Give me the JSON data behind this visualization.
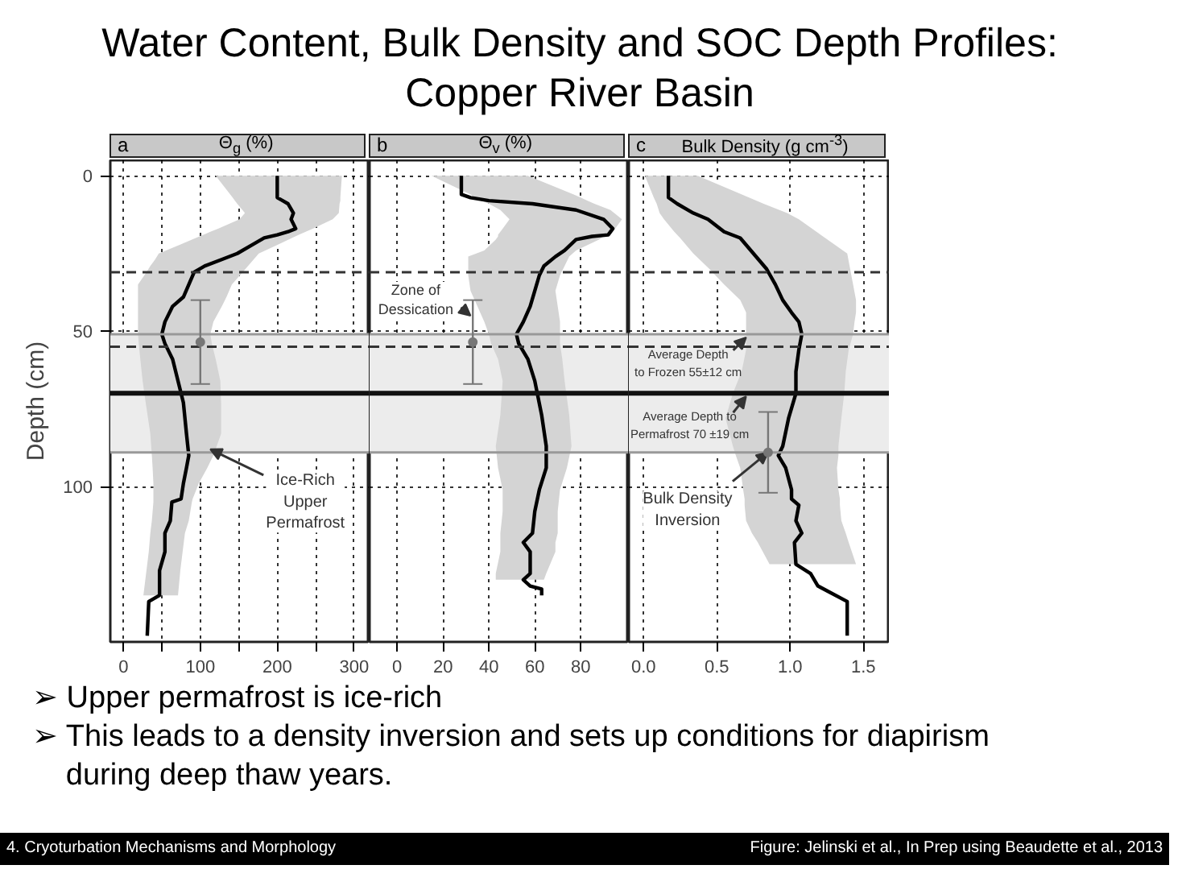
{
  "chart_data": [
    {
      "type": "other",
      "title": "Water Content, Bulk Density and SOC Depth Profiles:\nCopper River Basin",
      "annotations": [
        "➢ Upper permafrost is ice-rich",
        "➢ This leads to a density inversion and sets up conditions for diapirism during deep thaw years.",
        "4. Cryoturbation Mechanisms and Morphology",
        "Figure: Jelinski et al., In Prep using Beaudette et al., 2013"
      ]
    },
    {
      "type": "line",
      "orientation": "horizontal",
      "title": "a",
      "xlabel": "Θ$_{g}$ (%)",
      "ylabel": "Depth (cm)",
      "xlim": [
        -17,
        320
      ],
      "ylim": [
        150,
        -5
      ],
      "xticks": [
        0,
        {
          "value": 50,
          "label": null
        },
        100,
        {
          "value": 150,
          "label": null
        },
        200,
        {
          "value": 250,
          "label": null
        },
        300
      ],
      "yticks": [
        0,
        50,
        100
      ],
      "grid": true,
      "series": [
        {
          "color": "#000000",
          "x": [
            0,
            7,
            8,
            9,
            12,
            14,
            17,
            18,
            19,
            20,
            22,
            25,
            27,
            29,
            31,
            35,
            39,
            42,
            47,
            51,
            54,
            59,
            66,
            73,
            83,
            90,
            94,
            99,
            104,
            105,
            111,
            115,
            121,
            127,
            135,
            137,
            148
          ],
          "values": [
            200,
            200,
            207,
            214,
            221,
            218,
            224,
            214,
            200,
            183,
            169,
            148,
            127,
            106,
            92,
            85,
            78,
            64,
            54,
            50,
            54,
            64,
            71,
            78,
            82,
            85,
            82,
            78,
            75,
            63,
            61,
            54,
            54,
            47,
            47,
            33,
            31
          ],
          "lower": [
            120,
            142,
            145,
            148,
            158,
            151,
            123,
            113,
            104,
            94,
            75,
            46,
            41,
            35,
            30,
            19,
            19,
            19,
            19,
            19,
            20,
            22,
            25,
            29,
            35,
            37,
            38,
            39,
            39,
            39,
            37,
            35,
            33,
            30,
            26,
            null,
            null
          ],
          "upper": [
            284,
            282,
            282,
            281,
            280,
            272,
            246,
            237,
            228,
            219,
            202,
            176,
            169,
            162,
            155,
            141,
            134,
            128,
            117,
            113,
            115,
            120,
            126,
            127,
            127,
            117,
            109,
            98,
            90,
            89,
            85,
            80,
            77,
            74,
            71,
            null,
            null
          ]
        },
        {
          "type": "scatter",
          "marker": "circle",
          "color": "#777777",
          "x": [
            53.5
          ],
          "values": [
            100
          ],
          "xerrors": [
            [
              40,
              67
            ]
          ]
        }
      ],
      "ref_lines": [
        {
          "axis": "y",
          "value": 31,
          "line_style": "dashed",
          "color": "#333333"
        },
        {
          "axis": "y",
          "value": 51,
          "line_style": "solid",
          "color": "#999999"
        },
        {
          "axis": "y",
          "value": 55,
          "line_style": "dashed",
          "color": "#333333"
        },
        {
          "axis": "y",
          "value": 70,
          "line_style": "solid",
          "color": "#111111"
        },
        {
          "axis": "y",
          "value": 89,
          "line_style": "solid",
          "color": "#999999"
        }
      ],
      "bands": [
        {
          "axis": "y",
          "from": 51,
          "to": 89,
          "color": "#ececec"
        }
      ],
      "annotations": [
        {
          "text": "Ice-Rich\nUpper\nPermafrost",
          "x": 113,
          "y": 88
        }
      ]
    },
    {
      "type": "line",
      "orientation": "horizontal",
      "title": "b",
      "xlabel": "Θ$_{v}$ (%)",
      "xlim": [
        -12,
        101
      ],
      "ylim": [
        150,
        -5
      ],
      "xticks": [
        0,
        20,
        40,
        60,
        80
      ],
      "yticks": [
        0,
        50,
        100
      ],
      "grid": true,
      "tick_labels": "x",
      "series": [
        {
          "color": "#000000",
          "x": [
            0,
            6,
            7,
            8,
            9,
            11,
            14,
            17,
            19,
            19.5,
            20.5,
            24,
            26,
            29,
            32,
            37,
            42,
            47,
            51,
            54,
            59,
            66,
            77,
            87,
            94,
            101,
            108,
            115,
            118,
            121,
            128,
            130,
            132,
            133,
            135
          ],
          "values": [
            28,
            28,
            32,
            40,
            59,
            78,
            90,
            94,
            92,
            85,
            78,
            73,
            69,
            64,
            62,
            60,
            58,
            55,
            52,
            53,
            57,
            60,
            63,
            65,
            65,
            62,
            60,
            59,
            55,
            58,
            58,
            55,
            58,
            63,
            63
          ],
          "lower": [
            15,
            32,
            34,
            37,
            40,
            45,
            49,
            46,
            44,
            44,
            43,
            38,
            31,
            31,
            31,
            32,
            35,
            38,
            40,
            41,
            44,
            46,
            45,
            43,
            44,
            46,
            46,
            45,
            45,
            45,
            43,
            43,
            null,
            null,
            null
          ],
          "upper": [
            57,
            77,
            80,
            83,
            86,
            93,
            98,
            95,
            93,
            90,
            88,
            78,
            75,
            73,
            71,
            69,
            70,
            71,
            71,
            71,
            72,
            73,
            75,
            76,
            74,
            71,
            70,
            70,
            69,
            69,
            65,
            64,
            null,
            null,
            null
          ]
        },
        {
          "type": "scatter",
          "marker": "circle",
          "color": "#777777",
          "x": [
            53.5
          ],
          "values": [
            33
          ],
          "xerrors": [
            [
              40,
              67
            ]
          ]
        }
      ],
      "ref_lines": [
        {
          "axis": "y",
          "value": 31,
          "line_style": "dashed",
          "color": "#333333"
        },
        {
          "axis": "y",
          "value": 51,
          "line_style": "solid",
          "color": "#999999"
        },
        {
          "axis": "y",
          "value": 55,
          "line_style": "dashed",
          "color": "#333333"
        },
        {
          "axis": "y",
          "value": 70,
          "line_style": "solid",
          "color": "#111111"
        },
        {
          "axis": "y",
          "value": 89,
          "line_style": "solid",
          "color": "#999999"
        }
      ],
      "bands": [
        {
          "axis": "y",
          "from": 51,
          "to": 89,
          "color": "#ececec"
        }
      ],
      "annotations": [
        {
          "text": "Zone of\nDessication",
          "x": 32,
          "y": 45
        }
      ]
    },
    {
      "type": "line",
      "orientation": "horizontal",
      "title": "c",
      "xlabel": "Bulk Density (g cm$^{-3}$)",
      "xlim": [
        -0.1,
        1.68
      ],
      "ylim": [
        150,
        -5
      ],
      "xticks": [
        {
          "value": 0,
          "label": "0.0"
        },
        0.5,
        {
          "value": 1,
          "label": "1.0"
        },
        1.5
      ],
      "yticks": [
        0,
        50,
        100
      ],
      "grid": true,
      "tick_labels": "x",
      "series": [
        {
          "color": "#000000",
          "x": [
            0,
            7,
            9,
            12,
            14,
            18,
            20,
            25,
            30,
            35,
            40,
            44,
            47,
            51,
            56,
            63,
            70,
            78,
            87,
            90,
            94,
            101,
            104,
            106,
            111,
            115,
            118,
            125,
            128,
            132,
            137,
            148
          ],
          "values": [
            0.17,
            0.17,
            0.23,
            0.34,
            0.44,
            0.55,
            0.66,
            0.75,
            0.84,
            0.9,
            0.95,
            1.01,
            1.06,
            1.08,
            1.06,
            1.04,
            1.04,
            0.99,
            0.95,
            0.92,
            0.97,
            1.01,
            1.01,
            1.06,
            1.04,
            1.08,
            1.03,
            1.04,
            1.14,
            1.19,
            1.39,
            1.39
          ],
          "lower": [
            0.01,
            0.07,
            0.09,
            0.11,
            0.14,
            0.21,
            0.25,
            0.34,
            0.45,
            0.55,
            0.66,
            0.7,
            0.7,
            0.7,
            0.7,
            0.67,
            0.61,
            0.56,
            0.61,
            0.63,
            0.66,
            0.68,
            0.69,
            0.69,
            0.7,
            0.74,
            0.78,
            0.86,
            null,
            null,
            null,
            null
          ],
          "upper": [
            0.37,
            0.72,
            0.82,
            0.98,
            1.06,
            1.18,
            1.24,
            1.39,
            1.41,
            1.43,
            1.45,
            1.45,
            1.44,
            1.43,
            1.4,
            1.38,
            1.37,
            1.35,
            1.33,
            1.33,
            1.32,
            1.33,
            1.34,
            1.34,
            1.35,
            1.38,
            1.4,
            1.45,
            null,
            null,
            null,
            null
          ]
        },
        {
          "type": "scatter",
          "marker": "circle",
          "color": "#777777",
          "x": [
            89
          ],
          "values": [
            0.85
          ],
          "xerrors": [
            [
              76,
              102
            ]
          ]
        }
      ],
      "ref_lines": [
        {
          "axis": "y",
          "value": 31,
          "line_style": "dashed",
          "color": "#333333"
        },
        {
          "axis": "y",
          "value": 51,
          "line_style": "solid",
          "color": "#999999"
        },
        {
          "axis": "y",
          "value": 55,
          "line_style": "dashed",
          "color": "#333333"
        },
        {
          "axis": "y",
          "value": 70,
          "line_style": "solid",
          "color": "#111111"
        },
        {
          "axis": "y",
          "value": 89,
          "line_style": "solid",
          "color": "#999999"
        }
      ],
      "bands": [
        {
          "axis": "y",
          "from": 51,
          "to": 89,
          "color": "#ececec"
        }
      ],
      "annotations": [
        {
          "text": "Average Depth\nto Frozen 55±12 cm",
          "x": 0.7,
          "y": 52
        },
        {
          "text": "Average Depth to\nPermafrost 70 ±19 cm",
          "x": 0.7,
          "y": 71
        },
        {
          "text": "Bulk Density\nInversion",
          "x": 0.85,
          "y": 89
        }
      ]
    }
  ]
}
